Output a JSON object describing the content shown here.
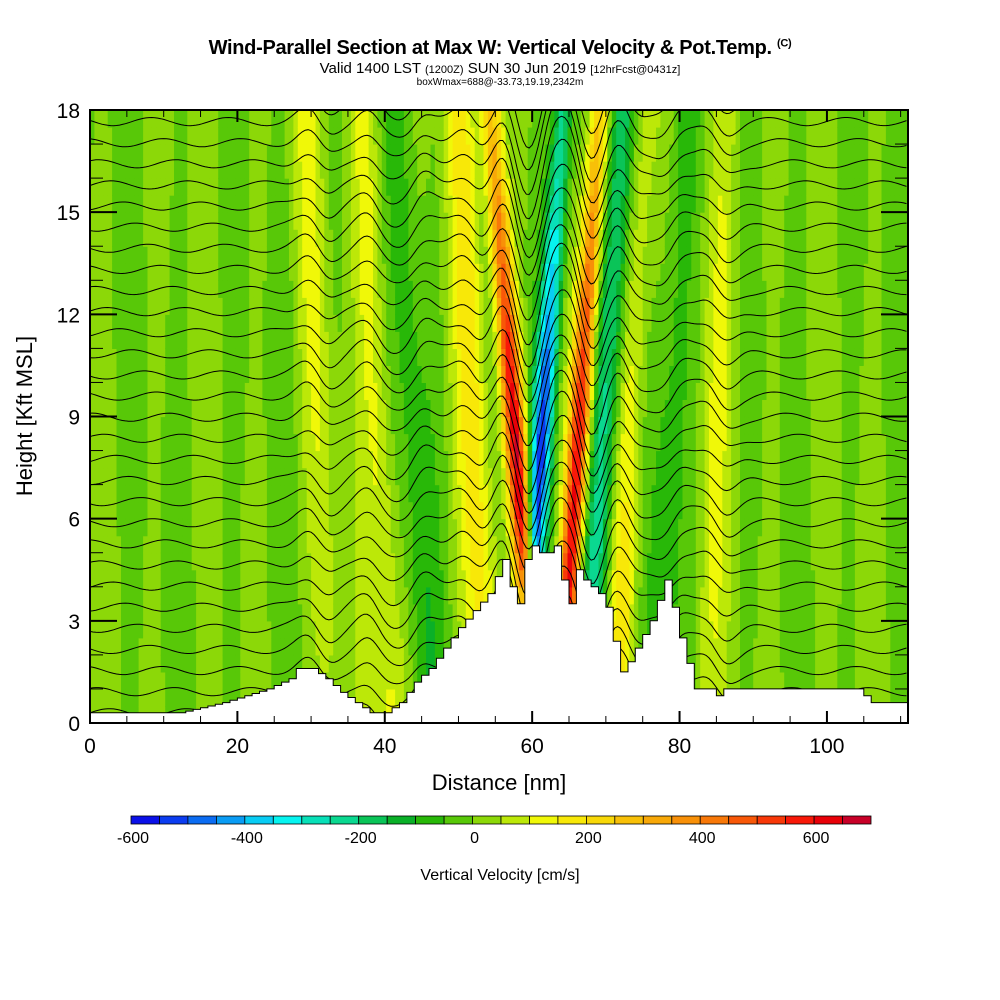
{
  "header": {
    "title": "Wind-Parallel Section at Max W: Vertical Velocity & Pot.Temp.",
    "copyright_mark": "(C)",
    "valid_prefix": "Valid 1400 LST",
    "valid_utc": "(1200Z)",
    "valid_date": "SUN 30 Jun 2019",
    "forecast": "[12hrFcst@0431z]",
    "box_info": "boxWmax=688@-33.73,19.19,2342m"
  },
  "chart_data": {
    "type": "heatmap",
    "title": "Wind-Parallel Section at Max W: Vertical Velocity & Pot.Temp.",
    "xlabel": "Distance [nm]",
    "ylabel": "Height [Kft MSL]",
    "xlim": [
      0,
      111
    ],
    "ylim": [
      0,
      18
    ],
    "x_ticks": [
      0,
      20,
      40,
      60,
      80,
      100
    ],
    "x_tick_labels": [
      "0",
      "20",
      "40",
      "60",
      "80",
      "100"
    ],
    "y_ticks": [
      0,
      3,
      6,
      9,
      12,
      15,
      18
    ],
    "y_tick_labels": [
      "0",
      "3",
      "6",
      "9",
      "12",
      "15",
      "18"
    ],
    "colorbar": {
      "label": "Vertical Velocity [cm/s]",
      "min": -600,
      "max": 700,
      "step": 50,
      "tick_values": [
        -600,
        -400,
        -200,
        0,
        200,
        400,
        600
      ],
      "tick_labels": [
        "-600",
        "-400",
        "-200",
        "0",
        "200",
        "400",
        "600"
      ],
      "colors": [
        "#0a10e8",
        "#0b3cf0",
        "#0b6cf2",
        "#0a9cf4",
        "#08ccf4",
        "#06f4f0",
        "#08e0b8",
        "#0ad890",
        "#0ac458",
        "#0ab028",
        "#28b808",
        "#58c808",
        "#8cd808",
        "#bce808",
        "#f0f808",
        "#f8e808",
        "#f8d808",
        "#f8c008",
        "#f8a808",
        "#f89008",
        "#f87808",
        "#f85808",
        "#f83808",
        "#f81808",
        "#e80008",
        "#c80028"
      ]
    },
    "overlay": "Potential temperature contours (black lines)",
    "terrain_profile_kft": {
      "x": [
        0,
        12,
        18,
        24,
        27,
        28,
        30,
        32,
        34,
        36,
        38,
        40,
        42,
        44,
        46,
        48,
        50,
        52,
        54,
        55,
        56,
        57,
        58,
        59,
        60,
        61,
        62,
        63,
        64,
        65,
        66,
        67,
        68,
        69,
        70,
        71,
        72,
        73,
        74,
        75,
        76,
        77,
        78,
        79,
        80,
        82,
        84,
        85,
        86,
        88,
        90,
        104,
        106,
        111
      ],
      "h": [
        0.3,
        0.3,
        0.6,
        1.0,
        1.3,
        1.6,
        1.6,
        1.3,
        0.9,
        0.6,
        0.3,
        0.3,
        0.6,
        1.2,
        1.6,
        2.2,
        2.8,
        3.3,
        3.8,
        4.3,
        4.8,
        4.0,
        3.5,
        4.8,
        5.2,
        5.0,
        5.0,
        5.2,
        4.2,
        3.5,
        4.5,
        4.2,
        4.0,
        3.8,
        3.4,
        2.4,
        1.5,
        1.8,
        2.2,
        2.6,
        3.0,
        3.6,
        4.2,
        3.4,
        2.5,
        1.0,
        1.0,
        0.8,
        1.0,
        1.0,
        1.0,
        1.0,
        0.6,
        0.6
      ]
    },
    "velocity_features": [
      {
        "x": 57.5,
        "type": "updraft",
        "peak": 650
      },
      {
        "x": 61.5,
        "type": "downdraft",
        "peak": -500
      },
      {
        "x": 66.5,
        "type": "updraft",
        "peak": 600
      },
      {
        "x": 70,
        "type": "downdraft",
        "peak": -300
      },
      {
        "x": 52,
        "type": "updraft",
        "peak": 200
      },
      {
        "x": 73,
        "type": "updraft",
        "peak": 200
      },
      {
        "x": 44,
        "type": "downdraft",
        "peak": -100
      },
      {
        "x": 39,
        "type": "updraft",
        "peak": 150
      },
      {
        "x": 31,
        "type": "updraft",
        "peak": 100
      },
      {
        "x": 79,
        "type": "downdraft",
        "peak": -100
      },
      {
        "x": 85,
        "type": "updraft",
        "peak": 100
      }
    ]
  }
}
